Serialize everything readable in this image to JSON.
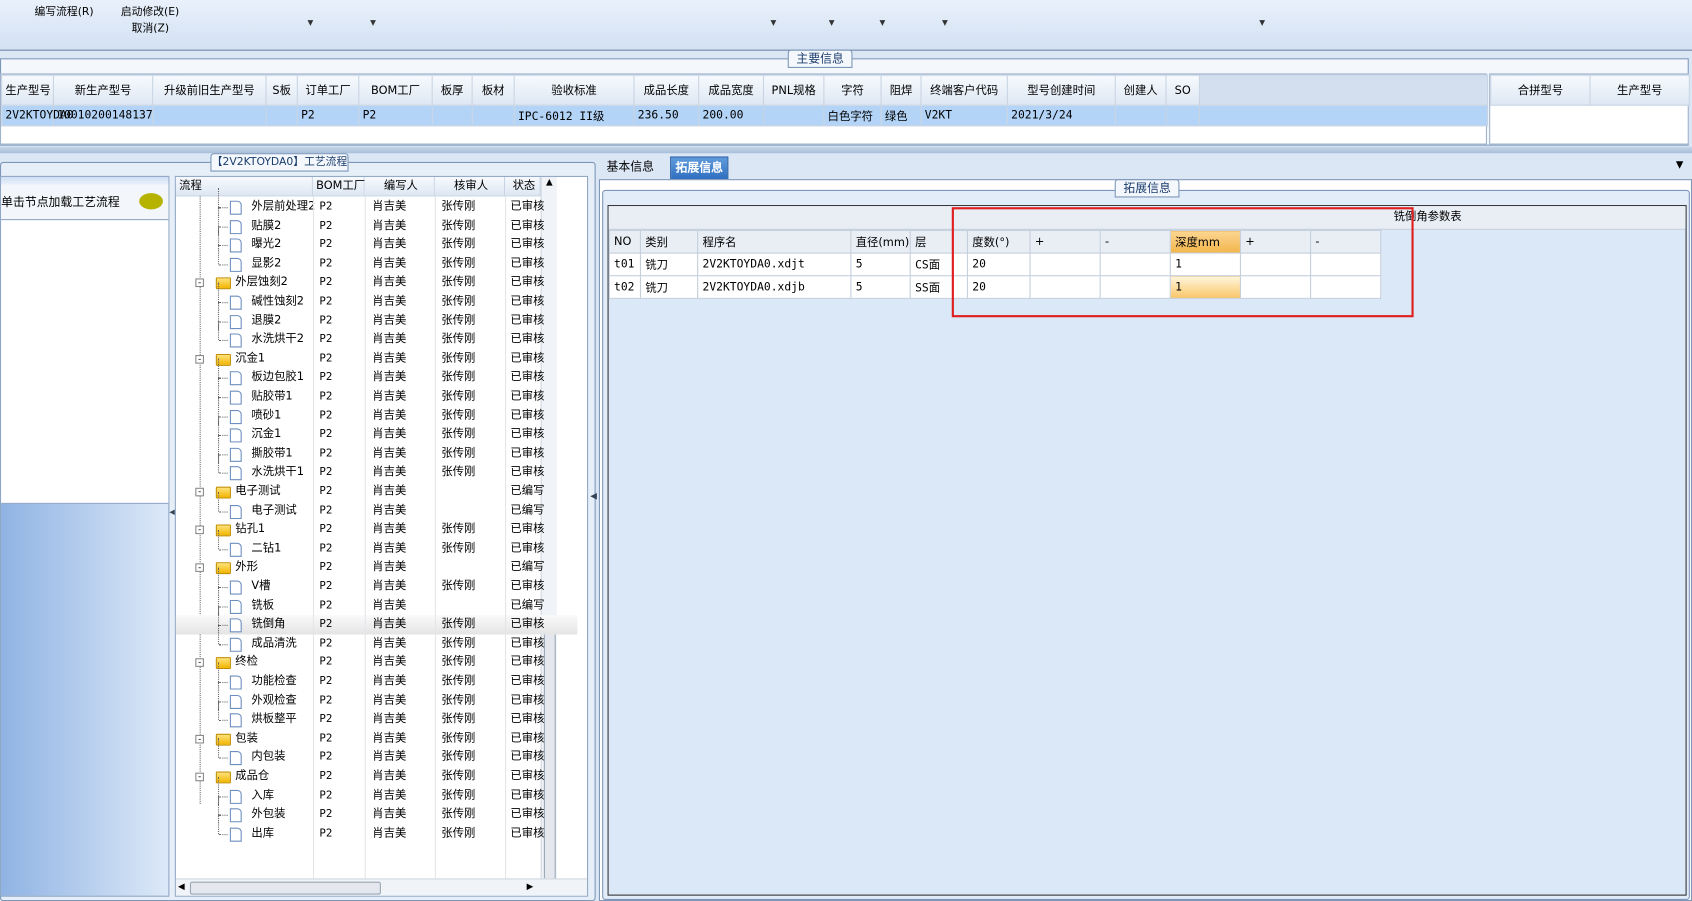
{
  "toolbar": {
    "items": [
      "编写流程(R)",
      "启动修改(E)",
      "取消(Z)"
    ]
  },
  "main_info": {
    "title": "主要信息",
    "columns": [
      "生产型号",
      "新生产型号",
      "升级前旧生产型号",
      "S板",
      "订单工厂",
      "BOM工厂",
      "板厚",
      "板材",
      "验收标准",
      "成品长度",
      "成品宽度",
      "PNL规格",
      "字符",
      "阻焊",
      "终端客户代码",
      "型号创建时间",
      "创建人",
      "SO"
    ],
    "row": [
      "2V2KTOYDA0",
      "10010200148137",
      "",
      "",
      "P2",
      "P2",
      "",
      "",
      "IPC-6012 II级",
      "236.50",
      "200.00",
      "",
      "白色字符",
      "绿色",
      "V2KT",
      "2021/3/24",
      "",
      ""
    ],
    "side_columns": [
      "合拼型号",
      "生产型号"
    ]
  },
  "process": {
    "title": "【2V2KTOYDA0】工艺流程",
    "hint": "单击节点加载工艺流程",
    "columns": [
      "流程",
      "BOM工厂",
      "编写人",
      "核审人",
      "状态"
    ],
    "rows": [
      {
        "n": "外层前处理2",
        "t": "leaf",
        "b": "P2",
        "w": "肖吉美",
        "r": "张传刚",
        "s": "已审核"
      },
      {
        "n": "贴膜2",
        "t": "leaf",
        "b": "P2",
        "w": "肖吉美",
        "r": "张传刚",
        "s": "已审核"
      },
      {
        "n": "曝光2",
        "t": "leaf",
        "b": "P2",
        "w": "肖吉美",
        "r": "张传刚",
        "s": "已审核"
      },
      {
        "n": "显影2",
        "t": "last",
        "b": "P2",
        "w": "肖吉美",
        "r": "张传刚",
        "s": "已审核"
      },
      {
        "n": "外层蚀刻2",
        "t": "folder",
        "b": "P2",
        "w": "肖吉美",
        "r": "张传刚",
        "s": "已审核"
      },
      {
        "n": "碱性蚀刻2",
        "t": "leaf",
        "b": "P2",
        "w": "肖吉美",
        "r": "张传刚",
        "s": "已审核"
      },
      {
        "n": "退膜2",
        "t": "leaf",
        "b": "P2",
        "w": "肖吉美",
        "r": "张传刚",
        "s": "已审核"
      },
      {
        "n": "水洗烘干2",
        "t": "last",
        "b": "P2",
        "w": "肖吉美",
        "r": "张传刚",
        "s": "已审核"
      },
      {
        "n": "沉金1",
        "t": "folder",
        "b": "P2",
        "w": "肖吉美",
        "r": "张传刚",
        "s": "已审核"
      },
      {
        "n": "板边包胶1",
        "t": "leaf",
        "b": "P2",
        "w": "肖吉美",
        "r": "张传刚",
        "s": "已审核"
      },
      {
        "n": "贴胶带1",
        "t": "leaf",
        "b": "P2",
        "w": "肖吉美",
        "r": "张传刚",
        "s": "已审核"
      },
      {
        "n": "喷砂1",
        "t": "leaf",
        "b": "P2",
        "w": "肖吉美",
        "r": "张传刚",
        "s": "已审核"
      },
      {
        "n": "沉金1",
        "t": "leaf",
        "b": "P2",
        "w": "肖吉美",
        "r": "张传刚",
        "s": "已审核"
      },
      {
        "n": "撕胶带1",
        "t": "leaf",
        "b": "P2",
        "w": "肖吉美",
        "r": "张传刚",
        "s": "已审核"
      },
      {
        "n": "水洗烘干1",
        "t": "last",
        "b": "P2",
        "w": "肖吉美",
        "r": "张传刚",
        "s": "已审核"
      },
      {
        "n": "电子测试",
        "t": "folder",
        "b": "P2",
        "w": "肖吉美",
        "r": "",
        "s": "已编写"
      },
      {
        "n": "电子测试",
        "t": "last",
        "b": "P2",
        "w": "肖吉美",
        "r": "",
        "s": "已编写"
      },
      {
        "n": "钻孔1",
        "t": "folder",
        "b": "P2",
        "w": "肖吉美",
        "r": "张传刚",
        "s": "已审核"
      },
      {
        "n": "二钻1",
        "t": "last",
        "b": "P2",
        "w": "肖吉美",
        "r": "张传刚",
        "s": "已审核"
      },
      {
        "n": "外形",
        "t": "folder",
        "b": "P2",
        "w": "肖吉美",
        "r": "",
        "s": "已编写"
      },
      {
        "n": "V槽",
        "t": "leaf",
        "b": "P2",
        "w": "肖吉美",
        "r": "张传刚",
        "s": "已审核"
      },
      {
        "n": "铣板",
        "t": "leaf",
        "b": "P2",
        "w": "肖吉美",
        "r": "",
        "s": "已编写"
      },
      {
        "n": "铣倒角",
        "t": "leaf",
        "b": "P2",
        "w": "肖吉美",
        "r": "张传刚",
        "s": "已审核",
        "selected": true
      },
      {
        "n": "成品清洗",
        "t": "last",
        "b": "P2",
        "w": "肖吉美",
        "r": "张传刚",
        "s": "已审核"
      },
      {
        "n": "终检",
        "t": "folder",
        "b": "P2",
        "w": "肖吉美",
        "r": "张传刚",
        "s": "已审核"
      },
      {
        "n": "功能检查",
        "t": "leaf",
        "b": "P2",
        "w": "肖吉美",
        "r": "张传刚",
        "s": "已审核"
      },
      {
        "n": "外观检查",
        "t": "leaf",
        "b": "P2",
        "w": "肖吉美",
        "r": "张传刚",
        "s": "已审核"
      },
      {
        "n": "烘板整平",
        "t": "last",
        "b": "P2",
        "w": "肖吉美",
        "r": "张传刚",
        "s": "已审核"
      },
      {
        "n": "包装",
        "t": "folder",
        "b": "P2",
        "w": "肖吉美",
        "r": "张传刚",
        "s": "已审核"
      },
      {
        "n": "内包装",
        "t": "last",
        "b": "P2",
        "w": "肖吉美",
        "r": "张传刚",
        "s": "已审核"
      },
      {
        "n": "成品仓",
        "t": "folder",
        "b": "P2",
        "w": "肖吉美",
        "r": "张传刚",
        "s": "已审核"
      },
      {
        "n": "入库",
        "t": "leaf",
        "b": "P2",
        "w": "肖吉美",
        "r": "张传刚",
        "s": "已审核"
      },
      {
        "n": "外包装",
        "t": "leaf",
        "b": "P2",
        "w": "肖吉美",
        "r": "张传刚",
        "s": "已审核"
      },
      {
        "n": "出库",
        "t": "last",
        "b": "P2",
        "w": "肖吉美",
        "r": "张传刚",
        "s": "已审核"
      }
    ]
  },
  "tabs": [
    {
      "label": "基本信息",
      "active": false
    },
    {
      "label": "拓展信息",
      "active": true
    }
  ],
  "ext": {
    "group_title": "拓展信息",
    "table_title": "铣倒角参数表",
    "columns": [
      "NO",
      "类别",
      "程序名",
      "直径(mm)",
      "层",
      "度数(°)",
      "+",
      "-",
      "深度mm",
      "+",
      "-"
    ],
    "rows": [
      [
        "t01",
        "铣刀",
        "2V2KTOYDA0.xdjt",
        "5",
        "CS面",
        "20",
        "",
        "",
        "1",
        "",
        ""
      ],
      [
        "t02",
        "铣刀",
        "2V2KTOYDA0.xdjb",
        "5",
        "SS面",
        "20",
        "",
        "",
        "1",
        "",
        ""
      ]
    ]
  },
  "colors": {
    "selection": "#b3d4f7",
    "active_tab": "#2f6fc0",
    "highlight_column": "#f7c46c",
    "annotation_box": "#e02020"
  }
}
